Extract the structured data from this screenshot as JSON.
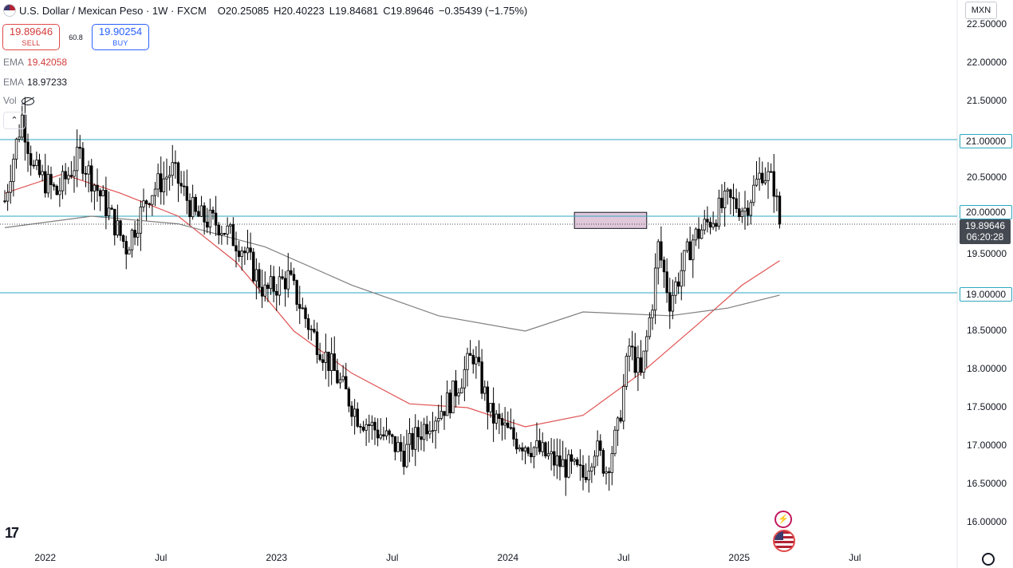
{
  "header": {
    "symbol": "U.S. Dollar / Mexican Peso · 1W · FXCM",
    "open_label": "O",
    "open": "20.25085",
    "high_label": "H",
    "high": "20.40223",
    "low_label": "L",
    "low": "19.84681",
    "close_label": "C",
    "close": "19.89646",
    "change": "−0.35439 (−1.75%)"
  },
  "trade": {
    "sell_price": "19.89646",
    "sell_label": "SELL",
    "spread": "60.8",
    "buy_price": "19.90254",
    "buy_label": "BUY"
  },
  "indicators": {
    "ema1_label": "EMA",
    "ema1_value": "19.42058",
    "ema2_label": "EMA",
    "ema2_value": "18.97233",
    "vol_label": "Vol"
  },
  "currency": "MXN",
  "colors": {
    "up": "#ffffff",
    "down": "#000000",
    "ema_fast": "#e05252",
    "ema_slow": "#7f7f7f",
    "hline": "#2ea7c1",
    "zone": "rgba(214,180,206,0.75)",
    "accent": "#2962ff"
  },
  "icons": [
    "usd-flag-icon",
    "eye-off-icon",
    "chevron-up-icon",
    "tradingview-logo-icon",
    "gear-icon",
    "lightning-icon",
    "us-flag-icon"
  ],
  "price_boxes": {
    "line_21": "21.00000",
    "line_20": "20.00000",
    "line_19": "19.00000",
    "last_price": "19.89646",
    "countdown": "06:20:28"
  },
  "chart_data": {
    "type": "candlestick",
    "title": "U.S. Dollar / Mexican Peso · 1W · FXCM",
    "ylim": [
      15.75,
      22.55
    ],
    "y_ticks": [
      "22.50000",
      "22.00000",
      "21.50000",
      "21.00000",
      "20.50000",
      "20.00000",
      "19.50000",
      "19.00000",
      "18.50000",
      "18.00000",
      "17.50000",
      "17.00000",
      "16.50000",
      "16.00000"
    ],
    "y_tick_values": [
      22.5,
      22.0,
      21.5,
      21.0,
      20.5,
      20.0,
      19.5,
      19.0,
      18.5,
      18.0,
      17.5,
      17.0,
      16.5,
      16.0
    ],
    "x_ticks": [
      "2022",
      "Jul",
      "2023",
      "Jul",
      "2024",
      "Jul",
      "2025",
      "Jul"
    ],
    "x_tick_weeks": [
      14,
      54,
      94,
      134,
      174,
      214,
      254,
      294
    ],
    "horizontal_lines": [
      21.0,
      20.0,
      19.0
    ],
    "zone": {
      "from_week": 197,
      "to_week": 222,
      "low": 19.84,
      "high": 20.05
    },
    "last_price": 19.89646,
    "anchors": [
      [
        0,
        20.2
      ],
      [
        2,
        20.6
      ],
      [
        6,
        21.3
      ],
      [
        10,
        20.6
      ],
      [
        18,
        20.3
      ],
      [
        26,
        20.8
      ],
      [
        34,
        20.2
      ],
      [
        42,
        19.6
      ],
      [
        50,
        20.3
      ],
      [
        58,
        20.6
      ],
      [
        66,
        20.0
      ],
      [
        74,
        19.9
      ],
      [
        82,
        19.6
      ],
      [
        90,
        19.0
      ],
      [
        98,
        19.2
      ],
      [
        106,
        18.5
      ],
      [
        112,
        18.1
      ],
      [
        122,
        17.4
      ],
      [
        132,
        17.1
      ],
      [
        138,
        16.9
      ],
      [
        146,
        17.3
      ],
      [
        154,
        17.6
      ],
      [
        162,
        18.2
      ],
      [
        168,
        17.4
      ],
      [
        176,
        17.1
      ],
      [
        182,
        17.0
      ],
      [
        190,
        16.8
      ],
      [
        196,
        16.7
      ],
      [
        200,
        16.6
      ],
      [
        204,
        17.0
      ],
      [
        208,
        16.7
      ],
      [
        212,
        17.2
      ],
      [
        216,
        18.3
      ],
      [
        220,
        17.9
      ],
      [
        224,
        18.9
      ],
      [
        226,
        19.6
      ],
      [
        230,
        18.9
      ],
      [
        234,
        19.3
      ],
      [
        238,
        19.7
      ],
      [
        244,
        19.95
      ],
      [
        250,
        20.2
      ],
      [
        256,
        20.1
      ],
      [
        262,
        20.6
      ],
      [
        266,
        20.4
      ],
      [
        268,
        19.9
      ]
    ],
    "ema_fast": [
      [
        0,
        20.3
      ],
      [
        20,
        20.55
      ],
      [
        40,
        20.3
      ],
      [
        60,
        20.0
      ],
      [
        80,
        19.4
      ],
      [
        100,
        18.5
      ],
      [
        120,
        17.95
      ],
      [
        140,
        17.55
      ],
      [
        160,
        17.5
      ],
      [
        180,
        17.25
      ],
      [
        200,
        17.4
      ],
      [
        220,
        17.95
      ],
      [
        240,
        18.6
      ],
      [
        255,
        19.1
      ],
      [
        268,
        19.42
      ]
    ],
    "ema_slow": [
      [
        0,
        19.85
      ],
      [
        30,
        20.0
      ],
      [
        60,
        19.9
      ],
      [
        90,
        19.6
      ],
      [
        120,
        19.1
      ],
      [
        150,
        18.7
      ],
      [
        180,
        18.5
      ],
      [
        200,
        18.75
      ],
      [
        230,
        18.7
      ],
      [
        250,
        18.8
      ],
      [
        268,
        18.97
      ]
    ],
    "series": [
      {
        "name": "U.S. Dollar / Mexican Peso"
      }
    ]
  }
}
